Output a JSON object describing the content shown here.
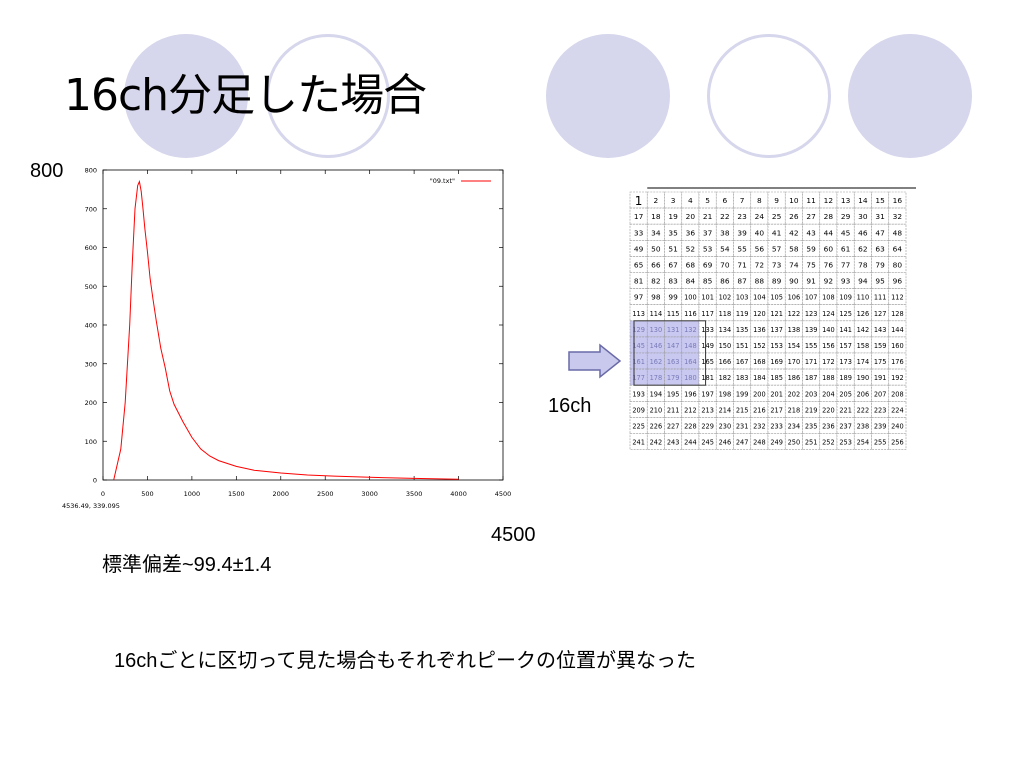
{
  "title": "16ch分足した場合",
  "labels": {
    "y_top": "800",
    "x_right": "4500",
    "ch_label": "16ch",
    "std_text": "標準偏差~99.4±1.4",
    "caption": "16chごとに区切って見た場合もそれぞれピークの位置が異なった"
  },
  "chart_data": {
    "type": "line",
    "legend": "\"09.txt\"",
    "legend_position": "top-right",
    "xlim": [
      0,
      4500
    ],
    "ylim": [
      0,
      800
    ],
    "x_ticks": [
      "0",
      "500",
      "1000",
      "1500",
      "2000",
      "2500",
      "3000",
      "3500",
      "4000",
      "4500"
    ],
    "y_ticks": [
      "0",
      "100",
      "200",
      "300",
      "400",
      "500",
      "600",
      "700",
      "800"
    ],
    "status": "4536.49,  339.095",
    "grid": false,
    "series": [
      {
        "name": "\"09.txt\"",
        "color": "#ff0000",
        "x": [
          120,
          200,
          250,
          300,
          330,
          360,
          390,
          410,
          430,
          450,
          470,
          500,
          530,
          560,
          600,
          650,
          700,
          750,
          800,
          900,
          1000,
          1100,
          1200,
          1300,
          1500,
          1700,
          2000,
          2300,
          2600,
          3000,
          3500,
          4000
        ],
        "y": [
          0,
          80,
          200,
          400,
          560,
          700,
          760,
          770,
          745,
          700,
          650,
          590,
          520,
          470,
          410,
          340,
          290,
          230,
          195,
          150,
          110,
          80,
          62,
          50,
          35,
          25,
          18,
          13,
          10,
          7,
          4,
          2
        ]
      }
    ]
  },
  "channel_grid": {
    "rows": 16,
    "cols": 16,
    "first_label": "1",
    "highlight_color": "#c8c8f0"
  },
  "colors": {
    "circle": "#d6d6ec",
    "arrow_fill": "#c9c9ee",
    "arrow_stroke": "#6a6aa8"
  }
}
